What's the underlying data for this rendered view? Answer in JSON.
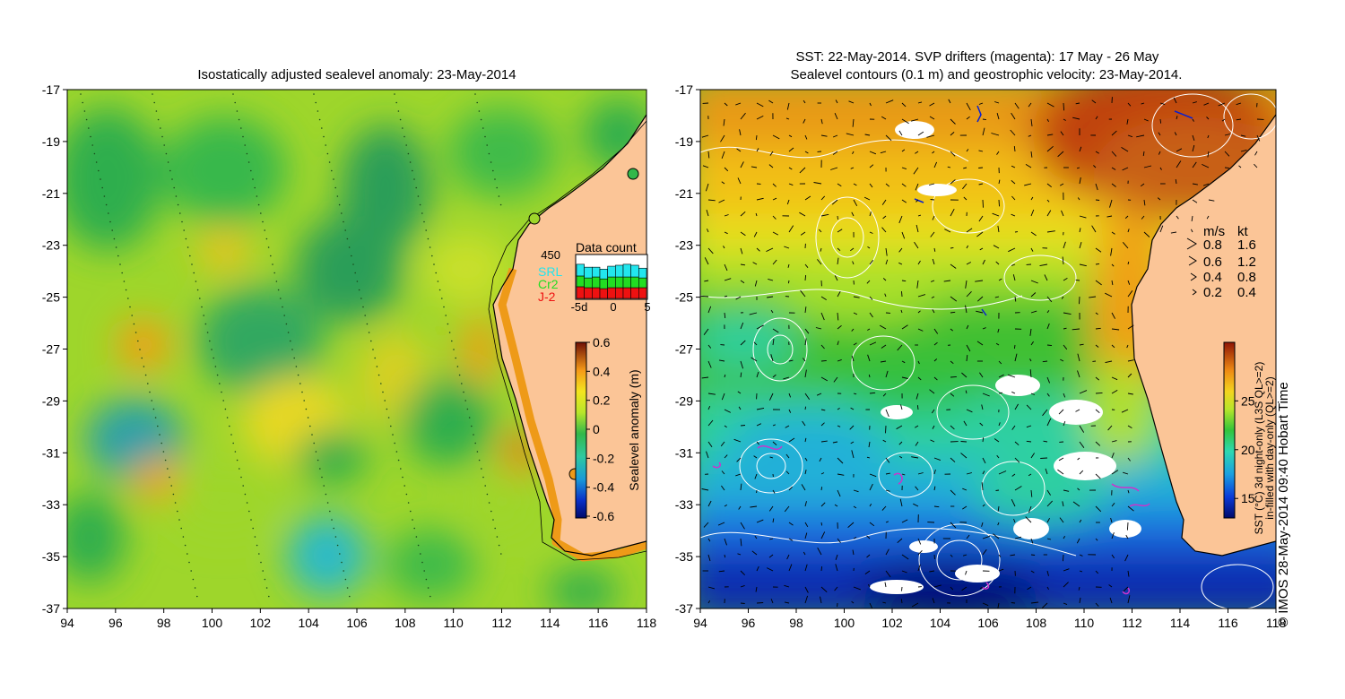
{
  "left_panel": {
    "title": "Isostatically adjusted sealevel anomaly: 23-May-2014",
    "x_ticks": [
      "94",
      "96",
      "98",
      "100",
      "102",
      "104",
      "106",
      "108",
      "110",
      "112",
      "114",
      "116",
      "118"
    ],
    "y_ticks": [
      "-17",
      "-19",
      "-21",
      "-23",
      "-25",
      "-27",
      "-29",
      "-31",
      "-33",
      "-35",
      "-37"
    ],
    "colorbar": {
      "label": "Sealevel anomaly (m)",
      "ticks": [
        "0.6",
        "0.4",
        "0.2",
        "0",
        "-0.2",
        "-0.4",
        "-0.6"
      ],
      "range": [
        -0.6,
        0.6
      ]
    },
    "data_count": {
      "title": "Data count",
      "max_label": "450",
      "missions": [
        {
          "name": "SRL",
          "color": "#22e6ee"
        },
        {
          "name": "Cr2",
          "color": "#22dd22"
        },
        {
          "name": "J-2",
          "color": "#ee1111"
        }
      ],
      "x_ticks": [
        "-5d",
        "0",
        "5"
      ],
      "bins": [
        {
          "SRL": 120,
          "Cr2": 110,
          "J-2": 120
        },
        {
          "SRL": 110,
          "Cr2": 100,
          "J-2": 110
        },
        {
          "SRL": 100,
          "Cr2": 110,
          "J-2": 110
        },
        {
          "SRL": 100,
          "Cr2": 100,
          "J-2": 100
        },
        {
          "SRL": 110,
          "Cr2": 110,
          "J-2": 110
        },
        {
          "SRL": 120,
          "Cr2": 110,
          "J-2": 110
        },
        {
          "SRL": 130,
          "Cr2": 110,
          "J-2": 110
        },
        {
          "SRL": 120,
          "Cr2": 110,
          "J-2": 110
        },
        {
          "SRL": 100,
          "Cr2": 100,
          "J-2": 110
        }
      ]
    }
  },
  "right_panel": {
    "title_line1": "SST: 22-May-2014. SVP drifters (magenta): 17 May - 26 May",
    "title_line2": "Sealevel contours (0.1 m) and geostrophic velocity: 23-May-2014.",
    "x_ticks": [
      "94",
      "96",
      "98",
      "100",
      "102",
      "104",
      "106",
      "108",
      "110",
      "112",
      "114",
      "116",
      "118"
    ],
    "y_ticks": [
      "-17",
      "-19",
      "-21",
      "-23",
      "-25",
      "-27",
      "-29",
      "-31",
      "-33",
      "-35",
      "-37"
    ],
    "colorbar": {
      "label_line1": "SST (°C) 3d night-only (L3S QL>=2)",
      "label_line2": "in-filled with day-only (QL>=2)",
      "ticks": [
        "25",
        "20",
        "15"
      ],
      "range": [
        13,
        31
      ]
    },
    "velocity_legend": {
      "header_ms": "m/s",
      "header_kt": "kt",
      "rows": [
        {
          "ms": "0.8",
          "kt": "1.6"
        },
        {
          "ms": "0.6",
          "kt": "1.2"
        },
        {
          "ms": "0.4",
          "kt": "0.8"
        },
        {
          "ms": "0.2",
          "kt": "0.4"
        }
      ]
    }
  },
  "credit": "© IMOS 28-May-2014 09:40 Hobart Time",
  "colors": {
    "land": "#fbc597",
    "coast": "#000000",
    "contour": "#ffffff",
    "drifter": "#cc33cc"
  }
}
